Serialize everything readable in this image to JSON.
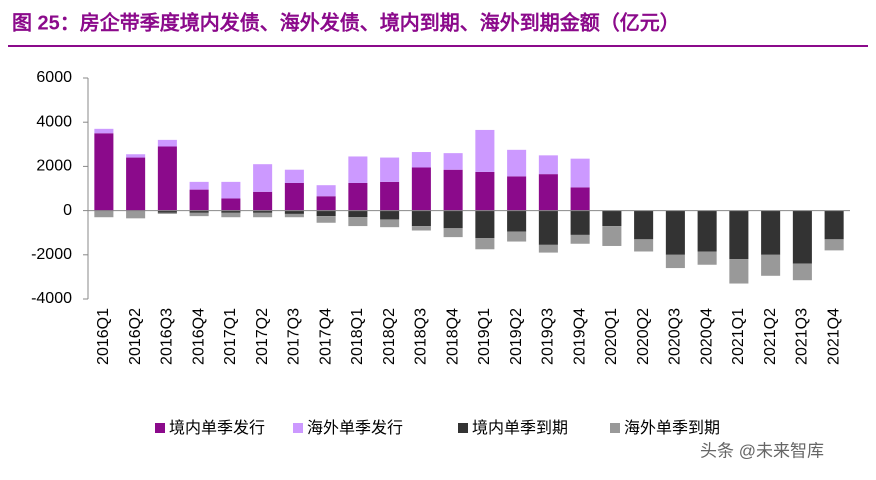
{
  "chart_data": {
    "type": "bar",
    "stacked": true,
    "title": "图 25：房企带季度境内发债、海外发债、境内到期、海外到期金额（亿元）",
    "watermark": "头条 @未来智库",
    "categories": [
      "2016Q1",
      "2016Q2",
      "2016Q3",
      "2016Q4",
      "2017Q1",
      "2017Q2",
      "2017Q3",
      "2017Q4",
      "2018Q1",
      "2018Q2",
      "2018Q3",
      "2018Q4",
      "2019Q1",
      "2019Q2",
      "2019Q3",
      "2019Q4",
      "2020Q1",
      "2020Q2",
      "2020Q3",
      "2020Q4",
      "2021Q1",
      "2021Q2",
      "2021Q3",
      "2021Q4"
    ],
    "series": [
      {
        "name": "境内单季发行",
        "color": "#8b0a8b",
        "values": [
          3500,
          2400,
          2900,
          950,
          550,
          850,
          1250,
          650,
          1250,
          1300,
          1950,
          1850,
          1750,
          1550,
          1650,
          1050,
          null,
          null,
          null,
          null,
          null,
          null,
          null,
          null
        ]
      },
      {
        "name": "海外单季发行",
        "color": "#cc99ff",
        "values": [
          200,
          150,
          300,
          350,
          750,
          1250,
          600,
          500,
          1200,
          1100,
          700,
          750,
          1900,
          1200,
          850,
          1300,
          null,
          null,
          null,
          null,
          null,
          null,
          null,
          null
        ]
      },
      {
        "name": "境内单季到期",
        "color": "#333333",
        "values": [
          0,
          0,
          -100,
          -100,
          -100,
          -100,
          -150,
          -250,
          -300,
          -400,
          -700,
          -800,
          -1250,
          -950,
          -1550,
          -1100,
          -700,
          -1300,
          -2000,
          -1850,
          -2200,
          -2000,
          -2400,
          -1300
        ]
      },
      {
        "name": "海外单季到期",
        "color": "#999999",
        "values": [
          -300,
          -350,
          -50,
          -150,
          -200,
          -200,
          -150,
          -300,
          -400,
          -350,
          -200,
          -400,
          -500,
          -450,
          -350,
          -400,
          -900,
          -550,
          -600,
          -600,
          -1100,
          -950,
          -750,
          -500
        ]
      }
    ],
    "ylim": [
      -4000,
      6000
    ],
    "yticks": [
      -4000,
      -2000,
      0,
      2000,
      4000,
      6000
    ],
    "grid": false
  }
}
